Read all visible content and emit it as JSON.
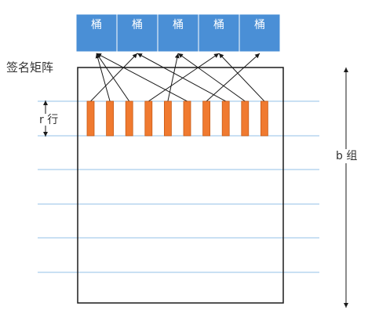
{
  "labels": {
    "matrix": "签名矩阵",
    "rows": "r 行",
    "bands": "b 组"
  },
  "buckets": [
    "桶",
    "桶",
    "桶",
    "桶",
    "桶"
  ],
  "signature_columns": 10,
  "band_lines": 6,
  "arrows": [
    {
      "from_column": 1,
      "to_bucket": 2
    },
    {
      "from_column": 2,
      "to_bucket": 1
    },
    {
      "from_column": 3,
      "to_bucket": 1
    },
    {
      "from_column": 4,
      "to_bucket": 4
    },
    {
      "from_column": 5,
      "to_bucket": 3
    },
    {
      "from_column": 6,
      "to_bucket": 1
    },
    {
      "from_column": 7,
      "to_bucket": 5
    },
    {
      "from_column": 8,
      "to_bucket": 2
    },
    {
      "from_column": 9,
      "to_bucket": 3
    },
    {
      "from_column": 10,
      "to_bucket": 4
    }
  ],
  "colors": {
    "bucket_fill": "#4a8fd6",
    "bucket_border": "#3a78bb",
    "bucket_text": "#ffffff",
    "column_fill": "#f07a30",
    "column_border": "#c85a14",
    "band_line": "#a9cdec",
    "frame": "#1a1a1a",
    "arrow": "#1a1a1a",
    "label": "#333333"
  }
}
